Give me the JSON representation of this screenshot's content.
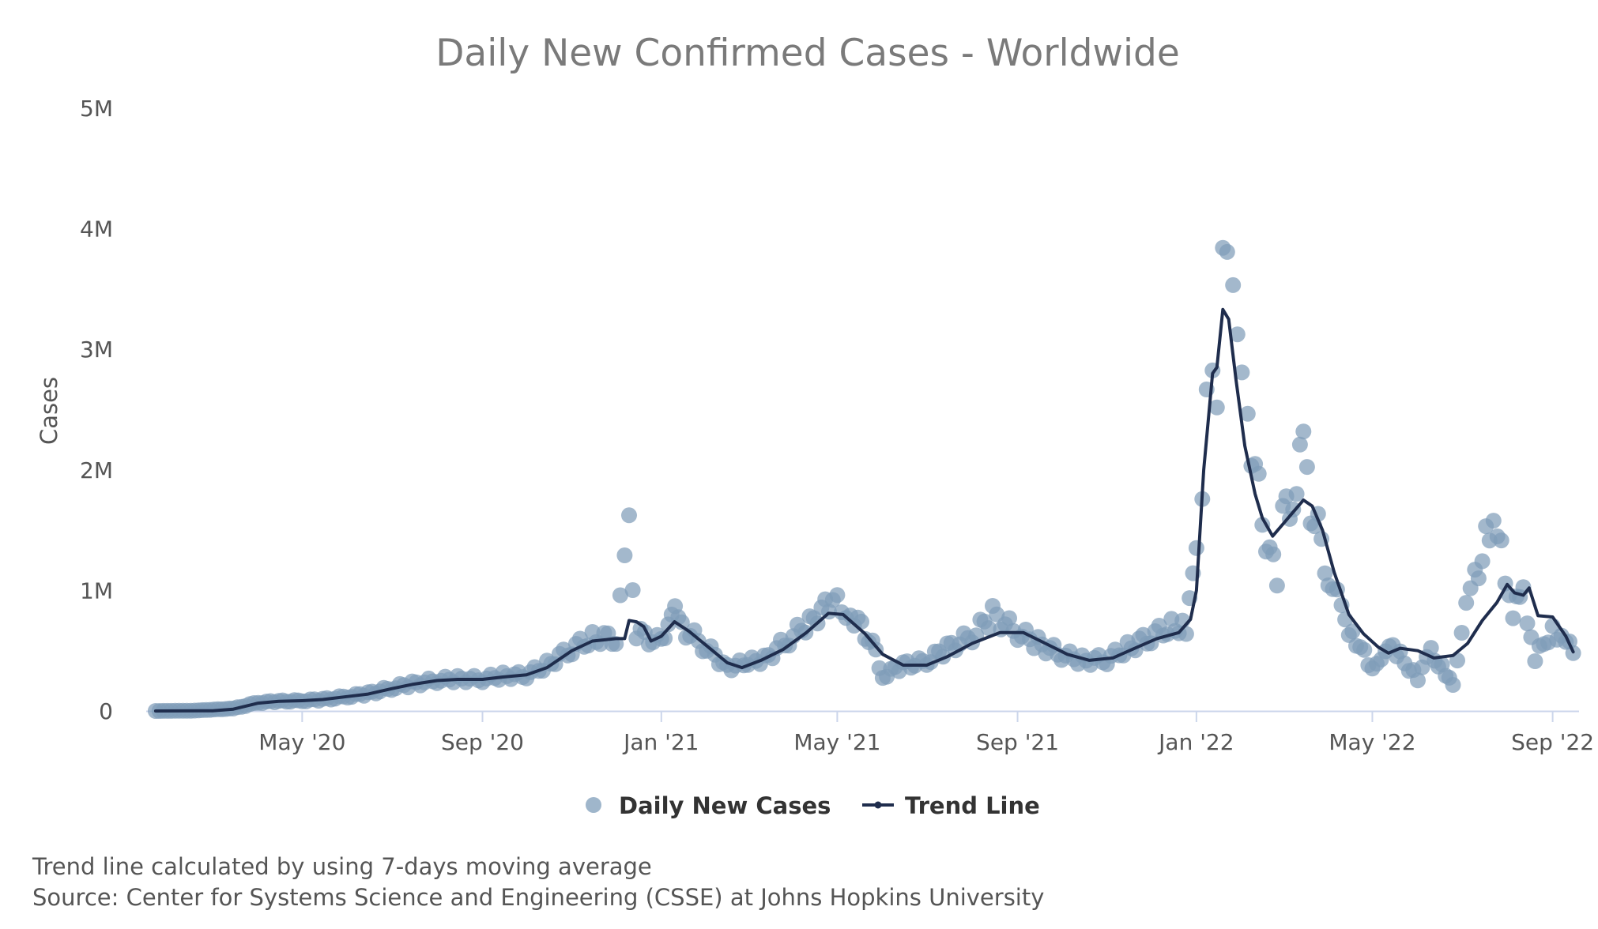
{
  "chart_data": {
    "type": "scatter",
    "title": "Daily New Confirmed Cases - Worldwide",
    "xlabel": "",
    "ylabel": "Cases",
    "x_range": [
      "2020-01-22",
      "2022-09-15"
    ],
    "ylim": [
      0,
      5000000
    ],
    "y_ticks": [
      {
        "value": 0,
        "label": "0"
      },
      {
        "value": 1000000,
        "label": "1M"
      },
      {
        "value": 2000000,
        "label": "2M"
      },
      {
        "value": 3000000,
        "label": "3M"
      },
      {
        "value": 4000000,
        "label": "4M"
      },
      {
        "value": 5000000,
        "label": "5M"
      }
    ],
    "x_ticks": [
      {
        "date": "2020-05-01",
        "label": "May '20"
      },
      {
        "date": "2020-09-01",
        "label": "Sep '20"
      },
      {
        "date": "2021-01-01",
        "label": "Jan '21"
      },
      {
        "date": "2021-05-01",
        "label": "May '21"
      },
      {
        "date": "2021-09-01",
        "label": "Sep '21"
      },
      {
        "date": "2022-01-01",
        "label": "Jan '22"
      },
      {
        "date": "2022-05-01",
        "label": "May '22"
      },
      {
        "date": "2022-09-01",
        "label": "Sep '22"
      }
    ],
    "grid": false,
    "legend": "bottom-center",
    "series": [
      {
        "name": "Daily New Cases",
        "kind": "scatter",
        "color": "#7f9db9",
        "points": [
          [
            "2020-01-22",
            0
          ],
          [
            "2020-02-15",
            2000
          ],
          [
            "2020-03-15",
            20000
          ],
          [
            "2020-04-01",
            70000
          ],
          [
            "2020-04-15",
            80000
          ],
          [
            "2020-05-01",
            85000
          ],
          [
            "2020-05-15",
            95000
          ],
          [
            "2020-06-01",
            120000
          ],
          [
            "2020-06-15",
            145000
          ],
          [
            "2020-07-01",
            190000
          ],
          [
            "2020-07-15",
            225000
          ],
          [
            "2020-08-01",
            255000
          ],
          [
            "2020-08-15",
            265000
          ],
          [
            "2020-09-01",
            265000
          ],
          [
            "2020-09-15",
            290000
          ],
          [
            "2020-10-01",
            300000
          ],
          [
            "2020-10-15",
            380000
          ],
          [
            "2020-11-01",
            520000
          ],
          [
            "2020-11-15",
            600000
          ],
          [
            "2020-12-01",
            610000
          ],
          [
            "2020-12-10",
            1500000
          ],
          [
            "2020-12-15",
            650000
          ],
          [
            "2021-01-01",
            560000
          ],
          [
            "2021-01-08",
            850000
          ],
          [
            "2021-01-15",
            700000
          ],
          [
            "2021-02-01",
            520000
          ],
          [
            "2021-02-15",
            370000
          ],
          [
            "2021-03-01",
            390000
          ],
          [
            "2021-03-15",
            460000
          ],
          [
            "2021-04-01",
            620000
          ],
          [
            "2021-04-15",
            780000
          ],
          [
            "2021-04-28",
            900000
          ],
          [
            "2021-05-10",
            820000
          ],
          [
            "2021-05-25",
            560000
          ],
          [
            "2021-06-01",
            290000
          ],
          [
            "2021-06-15",
            380000
          ],
          [
            "2021-07-01",
            410000
          ],
          [
            "2021-07-15",
            520000
          ],
          [
            "2021-08-01",
            620000
          ],
          [
            "2021-08-15",
            800000
          ],
          [
            "2021-09-01",
            650000
          ],
          [
            "2021-09-15",
            560000
          ],
          [
            "2021-10-01",
            470000
          ],
          [
            "2021-10-15",
            420000
          ],
          [
            "2021-11-01",
            430000
          ],
          [
            "2021-11-15",
            520000
          ],
          [
            "2021-12-01",
            620000
          ],
          [
            "2021-12-15",
            700000
          ],
          [
            "2021-12-25",
            700000
          ],
          [
            "2022-01-01",
            1250000
          ],
          [
            "2022-01-05",
            1900000
          ],
          [
            "2022-01-08",
            2500000
          ],
          [
            "2022-01-12",
            3000000
          ],
          [
            "2022-01-15",
            2400000
          ],
          [
            "2022-01-19",
            4000000
          ],
          [
            "2022-01-22",
            3700000
          ],
          [
            "2022-01-26",
            3600000
          ],
          [
            "2022-01-29",
            3100000
          ],
          [
            "2022-02-01",
            2800000
          ],
          [
            "2022-02-05",
            2500000
          ],
          [
            "2022-02-10",
            2000000
          ],
          [
            "2022-02-15",
            1600000
          ],
          [
            "2022-02-20",
            1300000
          ],
          [
            "2022-02-25",
            1100000
          ],
          [
            "2022-03-01",
            1600000
          ],
          [
            "2022-03-08",
            1800000
          ],
          [
            "2022-03-15",
            2150000
          ],
          [
            "2022-03-20",
            1700000
          ],
          [
            "2022-03-25",
            1500000
          ],
          [
            "2022-04-01",
            1150000
          ],
          [
            "2022-04-10",
            800000
          ],
          [
            "2022-04-20",
            600000
          ],
          [
            "2022-05-01",
            320000
          ],
          [
            "2022-05-10",
            550000
          ],
          [
            "2022-05-20",
            450000
          ],
          [
            "2022-06-01",
            280000
          ],
          [
            "2022-06-10",
            480000
          ],
          [
            "2022-06-20",
            320000
          ],
          [
            "2022-06-25",
            200000
          ],
          [
            "2022-07-01",
            700000
          ],
          [
            "2022-07-10",
            1100000
          ],
          [
            "2022-07-20",
            1500000
          ],
          [
            "2022-07-28",
            1350000
          ],
          [
            "2022-08-05",
            800000
          ],
          [
            "2022-08-12",
            1000000
          ],
          [
            "2022-08-20",
            420000
          ],
          [
            "2022-09-01",
            700000
          ],
          [
            "2022-09-10",
            570000
          ],
          [
            "2022-09-15",
            480000
          ]
        ]
      },
      {
        "name": "Trend Line",
        "kind": "line",
        "color": "#1f2d4d",
        "points": [
          [
            "2020-01-22",
            0
          ],
          [
            "2020-03-01",
            2000
          ],
          [
            "2020-03-15",
            15000
          ],
          [
            "2020-04-01",
            65000
          ],
          [
            "2020-04-15",
            80000
          ],
          [
            "2020-05-01",
            85000
          ],
          [
            "2020-05-15",
            95000
          ],
          [
            "2020-06-01",
            120000
          ],
          [
            "2020-06-15",
            140000
          ],
          [
            "2020-07-01",
            185000
          ],
          [
            "2020-07-15",
            220000
          ],
          [
            "2020-08-01",
            252000
          ],
          [
            "2020-08-15",
            262000
          ],
          [
            "2020-09-01",
            262000
          ],
          [
            "2020-09-15",
            282000
          ],
          [
            "2020-10-01",
            300000
          ],
          [
            "2020-10-15",
            360000
          ],
          [
            "2020-11-01",
            500000
          ],
          [
            "2020-11-15",
            580000
          ],
          [
            "2020-12-01",
            600000
          ],
          [
            "2020-12-07",
            600000
          ],
          [
            "2020-12-10",
            750000
          ],
          [
            "2020-12-15",
            740000
          ],
          [
            "2020-12-20",
            700000
          ],
          [
            "2020-12-25",
            580000
          ],
          [
            "2021-01-01",
            620000
          ],
          [
            "2021-01-10",
            740000
          ],
          [
            "2021-01-20",
            660000
          ],
          [
            "2021-02-01",
            540000
          ],
          [
            "2021-02-15",
            400000
          ],
          [
            "2021-02-25",
            360000
          ],
          [
            "2021-03-10",
            420000
          ],
          [
            "2021-03-25",
            510000
          ],
          [
            "2021-04-10",
            650000
          ],
          [
            "2021-04-25",
            810000
          ],
          [
            "2021-05-05",
            800000
          ],
          [
            "2021-05-20",
            640000
          ],
          [
            "2021-06-01",
            470000
          ],
          [
            "2021-06-15",
            380000
          ],
          [
            "2021-07-01",
            380000
          ],
          [
            "2021-07-15",
            450000
          ],
          [
            "2021-08-01",
            560000
          ],
          [
            "2021-08-20",
            650000
          ],
          [
            "2021-09-05",
            650000
          ],
          [
            "2021-09-20",
            560000
          ],
          [
            "2021-10-05",
            470000
          ],
          [
            "2021-10-20",
            420000
          ],
          [
            "2021-11-05",
            440000
          ],
          [
            "2021-11-20",
            520000
          ],
          [
            "2021-12-05",
            600000
          ],
          [
            "2021-12-20",
            650000
          ],
          [
            "2021-12-28",
            760000
          ],
          [
            "2022-01-01",
            1000000
          ],
          [
            "2022-01-06",
            2000000
          ],
          [
            "2022-01-12",
            2800000
          ],
          [
            "2022-01-15",
            2850000
          ],
          [
            "2022-01-19",
            3330000
          ],
          [
            "2022-01-23",
            3250000
          ],
          [
            "2022-01-28",
            2750000
          ],
          [
            "2022-02-03",
            2200000
          ],
          [
            "2022-02-10",
            1800000
          ],
          [
            "2022-02-15",
            1600000
          ],
          [
            "2022-02-22",
            1450000
          ],
          [
            "2022-03-01",
            1550000
          ],
          [
            "2022-03-08",
            1650000
          ],
          [
            "2022-03-15",
            1750000
          ],
          [
            "2022-03-21",
            1700000
          ],
          [
            "2022-03-28",
            1500000
          ],
          [
            "2022-04-05",
            1150000
          ],
          [
            "2022-04-15",
            800000
          ],
          [
            "2022-04-25",
            640000
          ],
          [
            "2022-05-05",
            530000
          ],
          [
            "2022-05-12",
            480000
          ],
          [
            "2022-05-20",
            520000
          ],
          [
            "2022-06-01",
            500000
          ],
          [
            "2022-06-12",
            440000
          ],
          [
            "2022-06-25",
            460000
          ],
          [
            "2022-07-05",
            560000
          ],
          [
            "2022-07-15",
            750000
          ],
          [
            "2022-07-25",
            900000
          ],
          [
            "2022-08-01",
            1050000
          ],
          [
            "2022-08-06",
            980000
          ],
          [
            "2022-08-12",
            960000
          ],
          [
            "2022-08-16",
            1020000
          ],
          [
            "2022-08-22",
            790000
          ],
          [
            "2022-09-01",
            780000
          ],
          [
            "2022-09-10",
            620000
          ],
          [
            "2022-09-15",
            490000
          ]
        ]
      }
    ]
  },
  "legend": {
    "daily_label": "Daily New Cases",
    "trend_label": "Trend Line"
  },
  "footnotes": {
    "line1": "Trend line calculated by using 7-days moving average",
    "line2": "Source: Center for Systems Science and Engineering (CSSE) at Johns Hopkins University"
  }
}
